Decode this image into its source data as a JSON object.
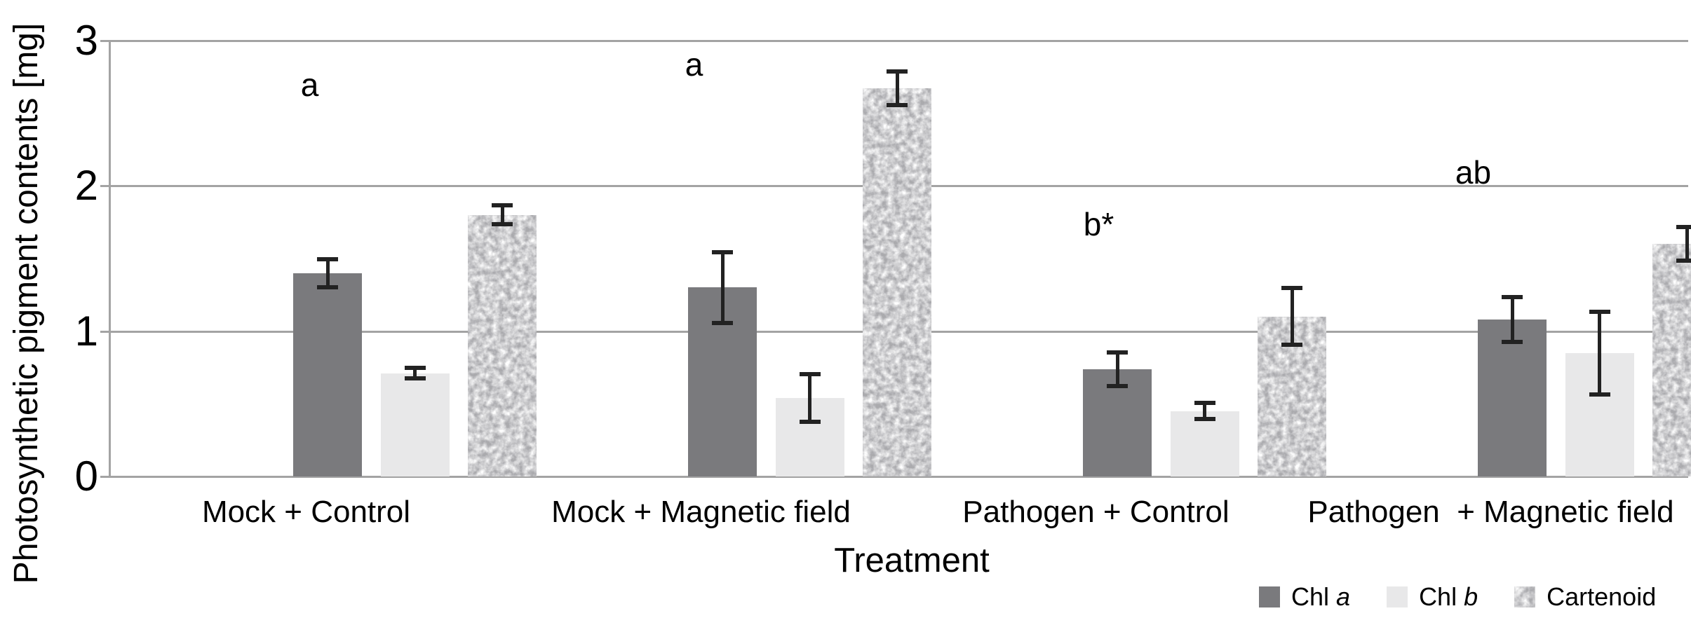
{
  "chart_data": {
    "type": "bar",
    "title": "",
    "xlabel": "Treatment",
    "ylabel": "Photosynthetic pigment contents [mg]",
    "ylim": [
      0,
      3
    ],
    "yticks": [
      3,
      2,
      1,
      0
    ],
    "y_tick_labels": [
      "3",
      "2",
      "1",
      "0"
    ],
    "grid": "horizontal",
    "legend_position": "bottom-right",
    "categories": [
      "Mock + Control",
      "Mock + Magnetic field",
      "Pathogen + Control",
      "Pathogen  + Magnetic field"
    ],
    "series": [
      {
        "name": "Chl a",
        "values": [
          1.4,
          1.3,
          0.74,
          1.08
        ],
        "errors": [
          0.11,
          0.26,
          0.13,
          0.17
        ],
        "color": "#7a7a7d",
        "pattern": "solid"
      },
      {
        "name": "Chl b",
        "values": [
          0.71,
          0.54,
          0.45,
          0.85
        ],
        "errors": [
          0.05,
          0.18,
          0.07,
          0.3
        ],
        "color": "#e8e8e9",
        "pattern": "solid"
      },
      {
        "name": "Cartenoid",
        "values": [
          1.8,
          2.67,
          1.1,
          1.6
        ],
        "errors": [
          0.08,
          0.13,
          0.21,
          0.13
        ],
        "color": "#6f6f72",
        "pattern": "speckle"
      }
    ],
    "annotations": [
      {
        "text": "a",
        "group_index": 0,
        "y_value": 2.69,
        "x_offset": 5
      },
      {
        "text": "a",
        "group_index": 1,
        "y_value": 2.83,
        "x_offset": -10
      },
      {
        "text": "b*",
        "group_index": 2,
        "y_value": 1.73,
        "x_offset": 4
      },
      {
        "text": "ab",
        "group_index": 3,
        "y_value": 2.09,
        "x_offset": -25
      }
    ],
    "error_bar_color": "#222222",
    "grid_color": "#a3a3a3"
  },
  "legend": {
    "items": [
      {
        "label": "Chl ",
        "italic": "a",
        "swatch": "chl-a-swatch"
      },
      {
        "label": "Chl ",
        "italic": "b",
        "swatch": "chl-b-swatch"
      },
      {
        "label": "Cartenoid",
        "italic": "",
        "swatch": "cartenoid-swatch"
      }
    ]
  }
}
